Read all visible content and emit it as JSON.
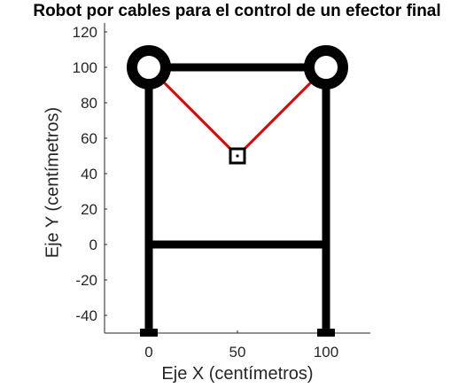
{
  "chart_data": {
    "type": "line",
    "title": "Robot por cables para el control de un efector final",
    "xlabel": "Eje X (centímetros)",
    "ylabel": "Eje Y (centímetros)",
    "xlim": [
      -25,
      125
    ],
    "ylim": [
      -50,
      125
    ],
    "xticks": [
      0,
      50,
      100
    ],
    "yticks": [
      -40,
      -20,
      0,
      20,
      40,
      60,
      80,
      100,
      120
    ],
    "grid": false,
    "frame": {
      "color": "#000000",
      "segments": [
        {
          "x": [
            0,
            0
          ],
          "y": [
            -50,
            100
          ]
        },
        {
          "x": [
            100,
            100
          ],
          "y": [
            -50,
            100
          ]
        },
        {
          "x": [
            0,
            100
          ],
          "y": [
            100,
            100
          ]
        },
        {
          "x": [
            0,
            100
          ],
          "y": [
            0,
            0
          ]
        }
      ],
      "pulleys": [
        {
          "x": 0,
          "y": 100
        },
        {
          "x": 100,
          "y": 100
        }
      ],
      "feet": [
        {
          "x": 0,
          "y": -50
        },
        {
          "x": 100,
          "y": -50
        }
      ]
    },
    "series": [
      {
        "color": "#e00000",
        "x": [
          0,
          50,
          100
        ],
        "y": [
          100,
          50,
          100
        ]
      }
    ],
    "end_effector": {
      "x": 50,
      "y": 50,
      "color": "#000000"
    }
  }
}
